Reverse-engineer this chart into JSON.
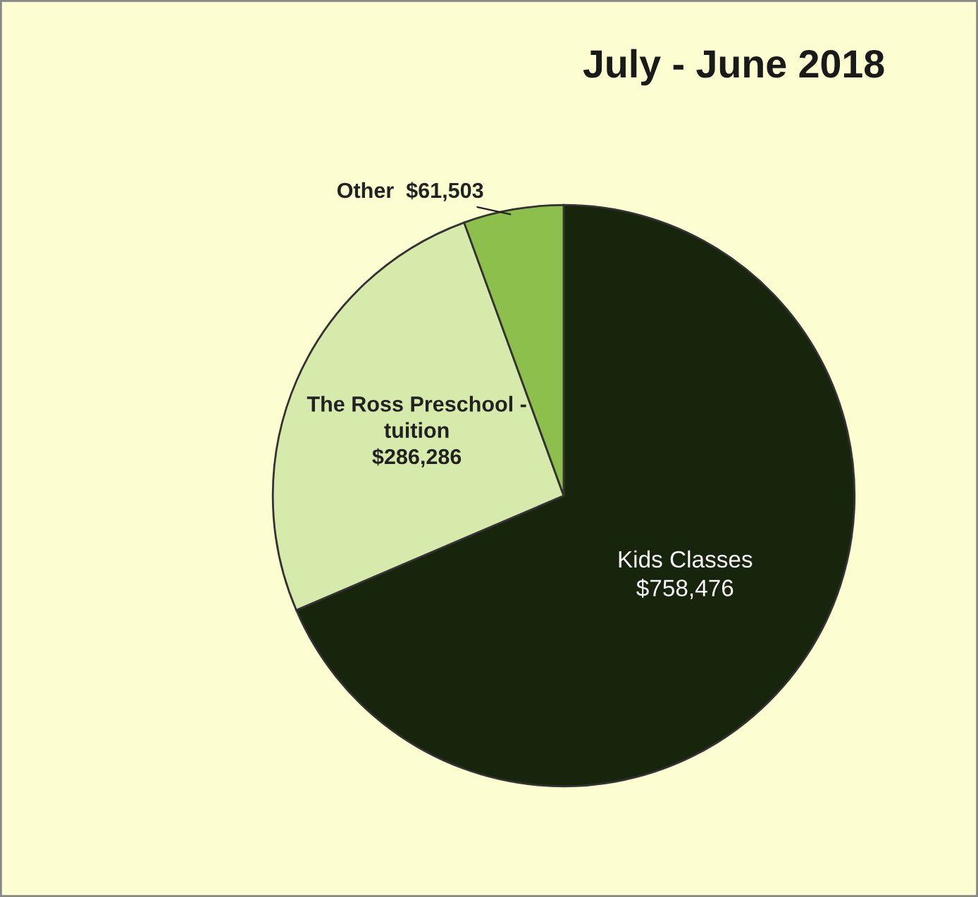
{
  "chart_data": {
    "type": "pie",
    "title": "July - June 2018",
    "categories": [
      "Kids Classes",
      "The Ross Preschool -\ntuition",
      "Other"
    ],
    "values": [
      758476,
      286286,
      61503
    ],
    "value_labels": [
      "$758,476",
      "$286,286",
      "$61,503"
    ],
    "colors": [
      "#17250c",
      "#d6ebab",
      "#8cbf4b"
    ]
  }
}
